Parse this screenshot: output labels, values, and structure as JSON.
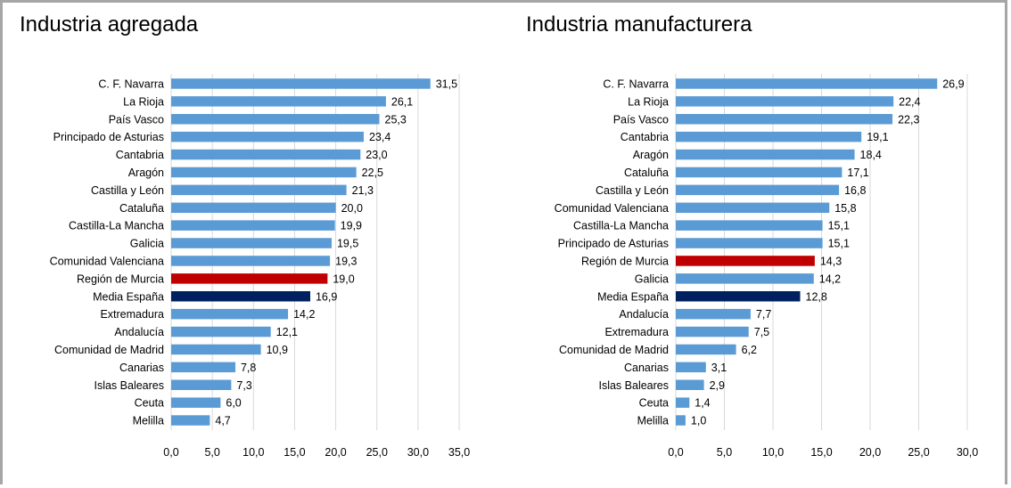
{
  "chart_data": [
    {
      "type": "bar",
      "orientation": "horizontal",
      "title": "Industria agregada",
      "xlim": [
        0,
        35
      ],
      "xticks": [
        "0,0",
        "5,0",
        "10,0",
        "15,0",
        "20,0",
        "25,0",
        "30,0",
        "35,0"
      ],
      "grid": true,
      "legend": "none",
      "categories": [
        "C. F. Navarra",
        "La Rioja",
        "País Vasco",
        "Principado de Asturias",
        "Cantabria",
        "Aragón",
        "Castilla y León",
        "Cataluña",
        "Castilla-La Mancha",
        "Galicia",
        "Comunidad Valenciana",
        "Región de Murcia",
        "Media España",
        "Extremadura",
        "Andalucía",
        "Comunidad de Madrid",
        "Canarias",
        "Islas Baleares",
        "Ceuta",
        "Melilla"
      ],
      "values": [
        31.5,
        26.1,
        25.3,
        23.4,
        23.0,
        22.5,
        21.3,
        20.0,
        19.9,
        19.5,
        19.3,
        19.0,
        16.9,
        14.2,
        12.1,
        10.9,
        7.8,
        7.3,
        6.0,
        4.7
      ],
      "value_labels": [
        "31,5",
        "26,1",
        "25,3",
        "23,4",
        "23,0",
        "22,5",
        "21,3",
        "20,0",
        "19,9",
        "19,5",
        "19,3",
        "19,0",
        "16,9",
        "14,2",
        "12,1",
        "10,9",
        "7,8",
        "7,3",
        "6,0",
        "4,7"
      ],
      "highlight": {
        "Región de Murcia": "#c00000",
        "Media España": "#002060"
      }
    },
    {
      "type": "bar",
      "orientation": "horizontal",
      "title": "Industria manufacturera",
      "xlim": [
        0,
        30
      ],
      "xticks": [
        "0,0",
        "5,0",
        "10,0",
        "15,0",
        "20,0",
        "25,0",
        "30,0"
      ],
      "grid": true,
      "legend": "none",
      "categories": [
        "C. F. Navarra",
        "La Rioja",
        "País Vasco",
        "Cantabria",
        "Aragón",
        "Cataluña",
        "Castilla y León",
        "Comunidad Valenciana",
        "Castilla-La Mancha",
        "Principado de Asturias",
        "Región de Murcia",
        "Galicia",
        "Media España",
        "Andalucía",
        "Extremadura",
        "Comunidad de Madrid",
        "Canarias",
        "Islas Baleares",
        "Ceuta",
        "Melilla"
      ],
      "values": [
        26.9,
        22.4,
        22.3,
        19.1,
        18.4,
        17.1,
        16.8,
        15.8,
        15.1,
        15.1,
        14.3,
        14.2,
        12.8,
        7.7,
        7.5,
        6.2,
        3.1,
        2.9,
        1.4,
        1.0
      ],
      "value_labels": [
        "26,9",
        "22,4",
        "22,3",
        "19,1",
        "18,4",
        "17,1",
        "16,8",
        "15,8",
        "15,1",
        "15,1",
        "14,3",
        "14,2",
        "12,8",
        "7,7",
        "7,5",
        "6,2",
        "3,1",
        "2,9",
        "1,4",
        "1,0"
      ],
      "highlight": {
        "Región de Murcia": "#c00000",
        "Media España": "#002060"
      }
    }
  ],
  "colors": {
    "default_bar": "#5b9bd5",
    "gridline": "#d9d9d9",
    "frame": "#a6a6a6"
  }
}
